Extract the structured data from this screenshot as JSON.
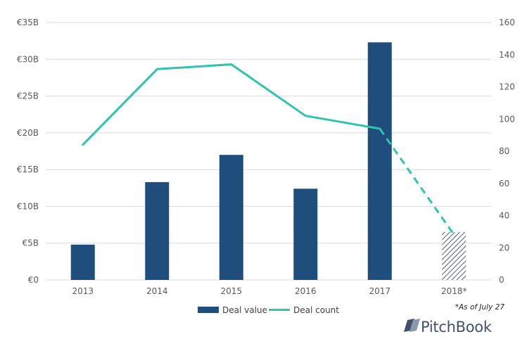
{
  "chart_data": {
    "type": "bar+line",
    "title": "",
    "categories": [
      "2013",
      "2014",
      "2015",
      "2016",
      "2017",
      "2018*"
    ],
    "series": [
      {
        "name": "Deal value",
        "type": "bar",
        "axis": "left",
        "unit": "EUR billions",
        "values": [
          4.8,
          13.3,
          17.0,
          12.4,
          32.3,
          6.5
        ],
        "partial_last": true
      },
      {
        "name": "Deal count",
        "type": "line",
        "axis": "right",
        "values": [
          84,
          131,
          134,
          102,
          94,
          28
        ],
        "partial_last": true
      }
    ],
    "left_axis": {
      "min": 0,
      "max": 35,
      "step": 5,
      "tick_labels": [
        "€0",
        "€5B",
        "€10B",
        "€15B",
        "€20B",
        "€25B",
        "€30B",
        "€35B"
      ]
    },
    "right_axis": {
      "min": 0,
      "max": 160,
      "step": 20,
      "tick_labels": [
        "0",
        "20",
        "40",
        "60",
        "80",
        "100",
        "120",
        "140",
        "160"
      ]
    },
    "grid": true,
    "legend": {
      "position": "bottom-center",
      "items": [
        "Deal value",
        "Deal count"
      ]
    },
    "footnote": "*As of July 27"
  },
  "branding": {
    "name": "PitchBook"
  },
  "colors": {
    "bar": "#1f4e7d",
    "line": "#2ec4b0",
    "grid": "#d9d9d9",
    "axis_text": "#595959",
    "brand": "#41516c"
  }
}
